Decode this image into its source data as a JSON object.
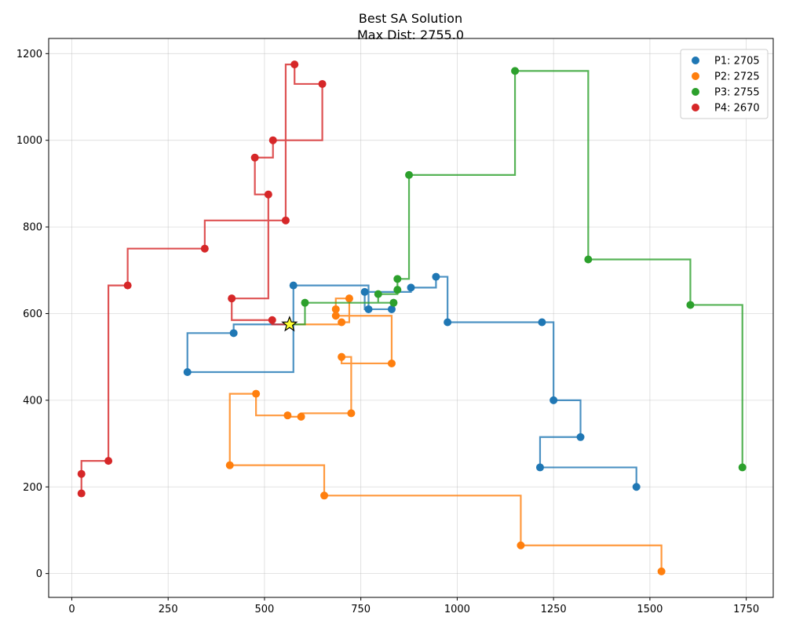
{
  "chart_data": {
    "type": "line",
    "title": "Best SA Solution",
    "subtitle": "Max Dist: 2755.0",
    "xlabel": "",
    "ylabel": "",
    "xlim": [
      -60,
      1820
    ],
    "ylim": [
      -55,
      1235
    ],
    "xticks": [
      0,
      250,
      500,
      750,
      1000,
      1250,
      1500,
      1750
    ],
    "yticks": [
      0,
      200,
      400,
      600,
      800,
      1000,
      1200
    ],
    "grid": true,
    "legend": "top-right",
    "depot": {
      "x": 565,
      "y": 575,
      "marker": "star",
      "color": "#ffff33"
    },
    "series": [
      {
        "name": "P1: 2705",
        "color": "#1f77b4",
        "points": [
          [
            565,
            575
          ],
          [
            420,
            555
          ],
          [
            300,
            465
          ],
          [
            575,
            665
          ],
          [
            770,
            610
          ],
          [
            830,
            610
          ],
          [
            760,
            650
          ],
          [
            880,
            660
          ],
          [
            945,
            685
          ],
          [
            975,
            580
          ],
          [
            1220,
            580
          ],
          [
            1250,
            400
          ],
          [
            1320,
            315
          ],
          [
            1215,
            245
          ],
          [
            1465,
            200
          ]
        ]
      },
      {
        "name": "P2: 2725",
        "color": "#ff7f0e",
        "points": [
          [
            565,
            575
          ],
          [
            700,
            580
          ],
          [
            720,
            635
          ],
          [
            685,
            610
          ],
          [
            685,
            595
          ],
          [
            830,
            485
          ],
          [
            700,
            500
          ],
          [
            725,
            370
          ],
          [
            595,
            362
          ],
          [
            560,
            365
          ],
          [
            478,
            415
          ],
          [
            410,
            250
          ],
          [
            655,
            180
          ],
          [
            1165,
            65
          ],
          [
            1530,
            5
          ]
        ]
      },
      {
        "name": "P3: 2755",
        "color": "#2ca02c",
        "points": [
          [
            565,
            575
          ],
          [
            605,
            625
          ],
          [
            835,
            625
          ],
          [
            795,
            645
          ],
          [
            845,
            655
          ],
          [
            845,
            680
          ],
          [
            875,
            920
          ],
          [
            1150,
            1160
          ],
          [
            1340,
            725
          ],
          [
            1605,
            620
          ],
          [
            1740,
            245
          ]
        ]
      },
      {
        "name": "P4: 2670",
        "color": "#d62728",
        "points": [
          [
            565,
            575
          ],
          [
            520,
            585
          ],
          [
            415,
            635
          ],
          [
            510,
            875
          ],
          [
            475,
            960
          ],
          [
            522,
            1000
          ],
          [
            650,
            1130
          ],
          [
            578,
            1175
          ],
          [
            555,
            815
          ],
          [
            345,
            750
          ],
          [
            145,
            665
          ],
          [
            95,
            260
          ],
          [
            25,
            230
          ],
          [
            25,
            185
          ]
        ]
      }
    ]
  }
}
